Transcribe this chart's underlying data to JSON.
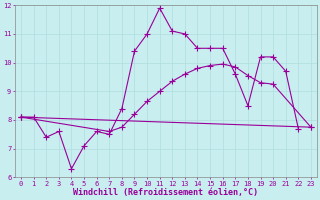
{
  "xlabel": "Windchill (Refroidissement éolien,°C)",
  "xlim_min": -0.5,
  "xlim_max": 23.5,
  "ylim_min": 6,
  "ylim_max": 12,
  "xticks": [
    0,
    1,
    2,
    3,
    4,
    5,
    6,
    7,
    8,
    9,
    10,
    11,
    12,
    13,
    14,
    15,
    16,
    17,
    18,
    19,
    20,
    21,
    22,
    23
  ],
  "yticks": [
    6,
    7,
    8,
    9,
    10,
    11,
    12
  ],
  "bg_color": "#c8eef0",
  "line_color": "#990099",
  "grid_color": "#b0dde0",
  "line1_x": [
    0,
    1,
    2,
    3,
    4,
    5,
    6,
    7,
    8,
    9,
    10,
    11,
    12,
    13,
    14,
    15,
    16,
    17,
    18,
    19,
    20,
    21,
    22
  ],
  "line1_y": [
    8.1,
    8.1,
    7.4,
    7.6,
    6.3,
    7.1,
    7.6,
    7.5,
    8.4,
    10.4,
    11.0,
    11.9,
    11.1,
    11.0,
    10.5,
    10.5,
    10.5,
    9.6,
    8.5,
    10.2,
    10.2,
    9.7,
    7.7
  ],
  "line2_x": [
    0,
    23
  ],
  "line2_y": [
    8.1,
    7.75
  ],
  "line3_x": [
    0,
    7,
    8,
    9,
    10,
    11,
    12,
    13,
    14,
    15,
    16,
    17,
    18,
    19,
    20,
    23
  ],
  "line3_y": [
    8.1,
    7.6,
    7.75,
    8.2,
    8.65,
    9.0,
    9.35,
    9.6,
    9.8,
    9.9,
    9.95,
    9.85,
    9.55,
    9.3,
    9.25,
    7.75
  ],
  "marker": "+",
  "markersize": 4,
  "linewidth": 0.8,
  "tick_fontsize": 5,
  "label_fontsize": 6
}
